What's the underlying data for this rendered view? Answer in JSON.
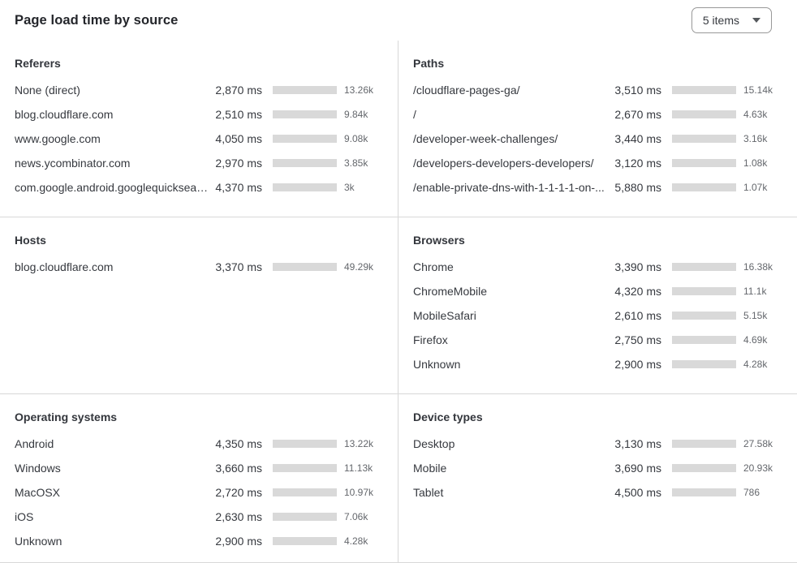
{
  "header": {
    "title": "Page load time by source",
    "items_dropdown": {
      "value": "5 items"
    }
  },
  "colors": {
    "bar_fill": "#3B76E4",
    "bar_track": "#D9D9D9",
    "divider": "#D8D8D8",
    "text_dark": "#36393F",
    "text_muted": "#64676C"
  },
  "chart_data": [
    {
      "type": "bar",
      "title": "Referers",
      "orientation": "horizontal",
      "value_unit": "ms",
      "rows": [
        {
          "label": "None (direct)",
          "time_ms": 2870,
          "time_display": "2,870 ms",
          "count_display": "13.26k",
          "bar_pct": 40
        },
        {
          "label": "blog.cloudflare.com",
          "time_ms": 2510,
          "time_display": "2,510 ms",
          "count_display": "9.84k",
          "bar_pct": 35
        },
        {
          "label": "www.google.com",
          "time_ms": 4050,
          "time_display": "4,050 ms",
          "count_display": "9.08k",
          "bar_pct": 56
        },
        {
          "label": "news.ycombinator.com",
          "time_ms": 2970,
          "time_display": "2,970 ms",
          "count_display": "3.85k",
          "bar_pct": 42
        },
        {
          "label": "com.google.android.googlequicksearc...",
          "time_ms": 4370,
          "time_display": "4,370 ms",
          "count_display": "3k",
          "bar_pct": 61
        }
      ]
    },
    {
      "type": "bar",
      "title": "Paths",
      "orientation": "horizontal",
      "value_unit": "ms",
      "rows": [
        {
          "label": "/cloudflare-pages-ga/",
          "time_ms": 3510,
          "time_display": "3,510 ms",
          "count_display": "15.14k",
          "bar_pct": 54
        },
        {
          "label": "/",
          "time_ms": 2670,
          "time_display": "2,670 ms",
          "count_display": "4.63k",
          "bar_pct": 41
        },
        {
          "label": "/developer-week-challenges/",
          "time_ms": 3440,
          "time_display": "3,440 ms",
          "count_display": "3.16k",
          "bar_pct": 53
        },
        {
          "label": "/developers-developers-developers/",
          "time_ms": 3120,
          "time_display": "3,120 ms",
          "count_display": "1.08k",
          "bar_pct": 48
        },
        {
          "label": "/enable-private-dns-with-1-1-1-1-on-...",
          "time_ms": 5880,
          "time_display": "5,880 ms",
          "count_display": "1.07k",
          "bar_pct": 91
        }
      ]
    },
    {
      "type": "bar",
      "title": "Hosts",
      "orientation": "horizontal",
      "value_unit": "ms",
      "rows": [
        {
          "label": "blog.cloudflare.com",
          "time_ms": 3370,
          "time_display": "3,370 ms",
          "count_display": "49.29k",
          "bar_pct": 100
        }
      ]
    },
    {
      "type": "bar",
      "title": "Browsers",
      "orientation": "horizontal",
      "value_unit": "ms",
      "rows": [
        {
          "label": "Chrome",
          "time_ms": 3390,
          "time_display": "3,390 ms",
          "count_display": "16.38k",
          "bar_pct": 57
        },
        {
          "label": "ChromeMobile",
          "time_ms": 4320,
          "time_display": "4,320 ms",
          "count_display": "11.1k",
          "bar_pct": 71
        },
        {
          "label": "MobileSafari",
          "time_ms": 2610,
          "time_display": "2,610 ms",
          "count_display": "5.15k",
          "bar_pct": 43
        },
        {
          "label": "Firefox",
          "time_ms": 2750,
          "time_display": "2,750 ms",
          "count_display": "4.69k",
          "bar_pct": 46
        },
        {
          "label": "Unknown",
          "time_ms": 2900,
          "time_display": "2,900 ms",
          "count_display": "4.28k",
          "bar_pct": 48
        }
      ]
    },
    {
      "type": "bar",
      "title": "Operating systems",
      "orientation": "horizontal",
      "value_unit": "ms",
      "rows": [
        {
          "label": "Android",
          "time_ms": 4350,
          "time_display": "4,350 ms",
          "count_display": "13.22k",
          "bar_pct": 91
        },
        {
          "label": "Windows",
          "time_ms": 3660,
          "time_display": "3,660 ms",
          "count_display": "11.13k",
          "bar_pct": 79
        },
        {
          "label": "MacOSX",
          "time_ms": 2720,
          "time_display": "2,720 ms",
          "count_display": "10.97k",
          "bar_pct": 59
        },
        {
          "label": "iOS",
          "time_ms": 2630,
          "time_display": "2,630 ms",
          "count_display": "7.06k",
          "bar_pct": 56
        },
        {
          "label": "Unknown",
          "time_ms": 2900,
          "time_display": "2,900 ms",
          "count_display": "4.28k",
          "bar_pct": 64
        }
      ]
    },
    {
      "type": "bar",
      "title": "Device types",
      "orientation": "horizontal",
      "value_unit": "ms",
      "rows": [
        {
          "label": "Desktop",
          "time_ms": 3130,
          "time_display": "3,130 ms",
          "count_display": "27.58k",
          "bar_pct": 70
        },
        {
          "label": "Mobile",
          "time_ms": 3690,
          "time_display": "3,690 ms",
          "count_display": "20.93k",
          "bar_pct": 83
        },
        {
          "label": "Tablet",
          "time_ms": 4500,
          "time_display": "4,500 ms",
          "count_display": "786",
          "bar_pct": 100
        }
      ]
    }
  ]
}
